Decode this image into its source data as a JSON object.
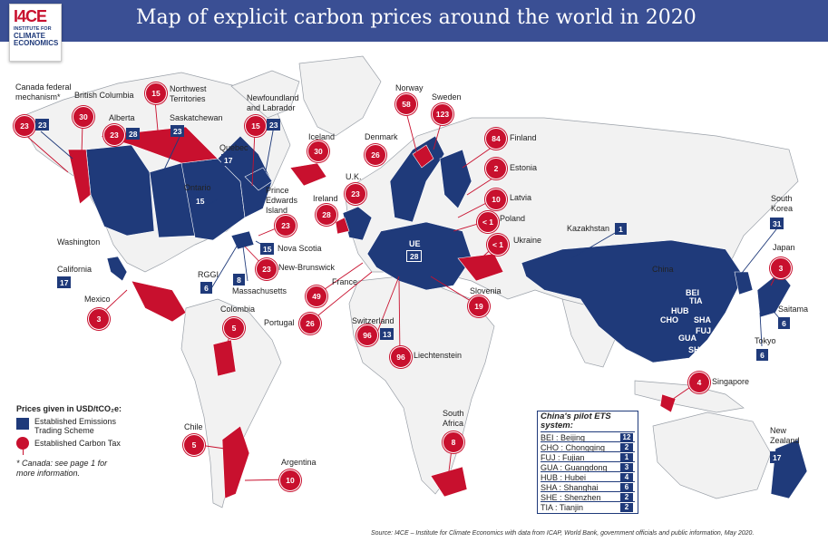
{
  "header": {
    "title": "Map of explicit carbon prices around the world in 2020"
  },
  "logo": {
    "big": "I4CE",
    "line1": "INSTITUTE FOR",
    "line2": "CLIMATE",
    "line3": "ECONOMICS"
  },
  "colors": {
    "ets": "#1f3a7a",
    "tax": "#c8102e",
    "header": "#3a4f94",
    "land": "#f2f2f2"
  },
  "labels": {
    "canada_federal": "Canada federal mechanism*",
    "british_columbia": "British Columbia",
    "alberta": "Alberta",
    "nwt": "Northwest Territories",
    "saskatchewan": "Saskatchewan",
    "newfoundland": "Newfoundland and Labrador",
    "quebec": "Quebec",
    "ontario": "Ontario",
    "pei": "Prince Edwards Island",
    "nova_scotia": "Nova Scotia",
    "new_brunswick": "New-Brunswick",
    "massachusetts": "Massachusetts",
    "rggi": "RGGI",
    "washington": "Washington",
    "california": "California",
    "mexico": "Mexico",
    "colombia": "Colombia",
    "chile": "Chile",
    "argentina": "Argentina",
    "iceland": "Iceland",
    "ireland": "Ireland",
    "uk": "U.K.",
    "denmark": "Denmark",
    "norway": "Norway",
    "sweden": "Sweden",
    "finland": "Finland",
    "estonia": "Estonia",
    "latvia": "Latvia",
    "poland": "Poland",
    "ukraine": "Ukraine",
    "eu": "UE",
    "france": "France",
    "portugal": "Portugal",
    "switzerland": "Switzerland",
    "liechtenstein": "Liechtenstein",
    "slovenia": "Slovenia",
    "kazakhstan": "Kazakhstan",
    "china": "China",
    "south_korea": "South Korea",
    "japan": "Japan",
    "saitama": "Saitama",
    "tokyo": "Tokyo",
    "singapore": "Singapore",
    "south_africa": "South Africa",
    "new_zealand": "New Zealand"
  },
  "prices": {
    "canada_federal_tax": "23",
    "canada_federal_ets": "23",
    "british_columbia": "30",
    "alberta_tax": "23",
    "alberta_ets": "28",
    "nwt": "15",
    "saskatchewan": "23",
    "newfoundland_tax": "15",
    "newfoundland_ets": "23",
    "quebec": "17",
    "ontario": "15",
    "pei": "23",
    "nova_scotia": "15",
    "new_brunswick": "23",
    "massachusetts": "8",
    "rggi": "6",
    "california": "17",
    "mexico": "3",
    "colombia": "5",
    "chile": "5",
    "argentina": "10",
    "iceland": "30",
    "ireland": "28",
    "uk": "23",
    "denmark": "26",
    "norway": "58",
    "sweden": "123",
    "finland": "84",
    "estonia": "2",
    "latvia": "10",
    "poland": "< 1",
    "ukraine": "< 1",
    "eu": "28",
    "france": "49",
    "portugal": "26",
    "switzerland_tax": "96",
    "switzerland_ets": "13",
    "liechtenstein": "96",
    "slovenia": "19",
    "kazakhstan": "1",
    "south_korea": "31",
    "japan": "3",
    "saitama": "6",
    "tokyo": "6",
    "singapore": "4",
    "south_africa": "8",
    "new_zealand": "17"
  },
  "china_codes": [
    "BEI",
    "TIA",
    "HUB",
    "CHO",
    "SHA",
    "FUJ",
    "GUA",
    "SHE"
  ],
  "legend": {
    "heading": "Prices given in USD/tCO₂e:",
    "ets": "Established Emissions Trading Scheme",
    "tax": "Established Carbon Tax",
    "note": "* Canada: see page 1 for more information."
  },
  "china_box": {
    "heading": "China's pilot ETS system:",
    "rows": [
      {
        "label": "BEI : Beijing",
        "value": "12"
      },
      {
        "label": "CHO : Chongqing",
        "value": "2"
      },
      {
        "label": "FUJ : Fujian",
        "value": "1"
      },
      {
        "label": "GUA : Guangdong",
        "value": "3"
      },
      {
        "label": "HUB : Hubei",
        "value": "4"
      },
      {
        "label": "SHA : Shanghai",
        "value": "6"
      },
      {
        "label": "SHE : Shenzhen",
        "value": "2"
      },
      {
        "label": "TIA : Tianjin",
        "value": "2"
      }
    ]
  },
  "source": "Source: I4CE – Institute for Climate Economics with data from ICAP, World Bank, government officials and public information, May 2020."
}
